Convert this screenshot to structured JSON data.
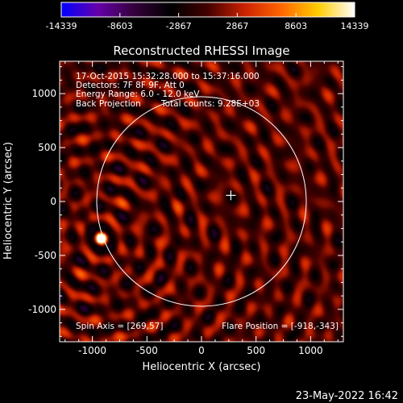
{
  "chart_data": {
    "type": "heatmap",
    "title": "Reconstructed RHESSI Image",
    "xlabel": "Heliocentric X (arcsec)",
    "ylabel": "Heliocentric Y (arcsec)",
    "xlim": [
      -1300,
      1300
    ],
    "ylim": [
      -1300,
      1300
    ],
    "x_ticks": [
      "-1000",
      "-500",
      "0",
      "500",
      "1000"
    ],
    "x_tick_values": [
      -1000,
      -500,
      0,
      500,
      1000
    ],
    "y_ticks": [
      "1000",
      "500",
      "0",
      "-500",
      "-1000"
    ],
    "y_tick_values": [
      1000,
      500,
      0,
      -500,
      -1000
    ],
    "colorbar": {
      "tick_labels": [
        "-14339",
        "-8603",
        "-2867",
        "2867",
        "8603",
        "14339"
      ],
      "min": -14339,
      "max": 14339,
      "colors": [
        "#0000ff",
        "#6600aa",
        "#33003a",
        "#000000",
        "#440000",
        "#cc2200",
        "#ff6600",
        "#ffcc00",
        "#ffffff"
      ]
    },
    "annotations": [
      "17-Oct-2015 15:32:28.000 to 15:37:16.000",
      "Detectors: 7F 8F 9F, Att 0",
      "Energy Range: 6.0 - 12.0 keV",
      "Back Projection",
      "Total counts: 9.28E+03"
    ],
    "spin_axis": "Spin Axis = [269,57]",
    "flare_position": "Flare Position = [-918,-343]",
    "flare_source": {
      "x": -918,
      "y": -343
    },
    "spin_marker": {
      "x": 269,
      "y": 57
    },
    "solar_limb_radius": 960,
    "grid": false
  },
  "footer": {
    "date": "23-May-2022 16:42"
  },
  "colors": {
    "background": "#000000",
    "foreground": "#ffffff"
  }
}
